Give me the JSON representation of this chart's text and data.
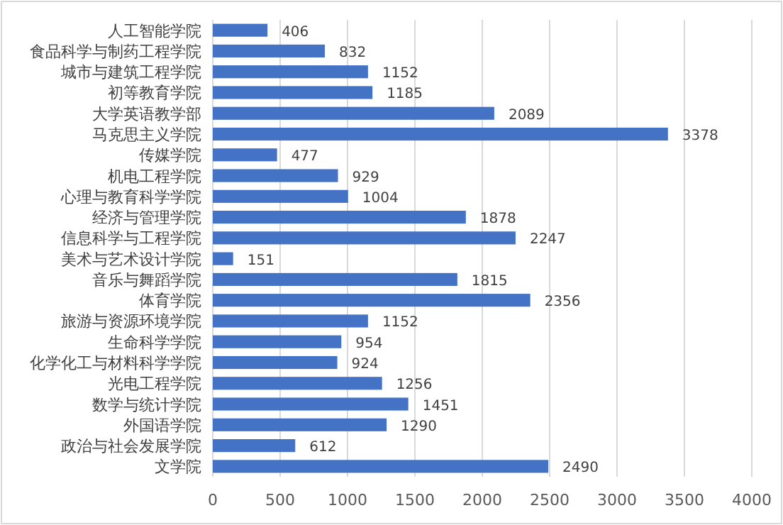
{
  "chart_data": {
    "type": "bar",
    "orientation": "horizontal",
    "categories": [
      "人工智能学院",
      "食品科学与制药工程学院",
      "城市与建筑工程学院",
      "初等教育学院",
      "大学英语教学部",
      "马克思主义学院",
      "传媒学院",
      "机电工程学院",
      "心理与教育科学学院",
      "经济与管理学院",
      "信息科学与工程学院",
      "美术与艺术设计学院",
      "音乐与舞蹈学院",
      "体育学院",
      "旅游与资源环境学院",
      "生命科学学院",
      "化学化工与材料科学学院",
      "光电工程学院",
      "数学与统计学院",
      "外国语学院",
      "政治与社会发展学院",
      "文学院"
    ],
    "values": [
      406,
      832,
      1152,
      1185,
      2089,
      3378,
      477,
      929,
      1004,
      1878,
      2247,
      151,
      1815,
      2356,
      1152,
      954,
      924,
      1256,
      1451,
      1290,
      612,
      2490
    ],
    "color": "#4472c4",
    "xlim": [
      0,
      4000
    ],
    "xticks": [
      0,
      500,
      1000,
      1500,
      2000,
      2500,
      3000,
      3500,
      4000
    ],
    "grid": "x",
    "data_labels": true
  }
}
